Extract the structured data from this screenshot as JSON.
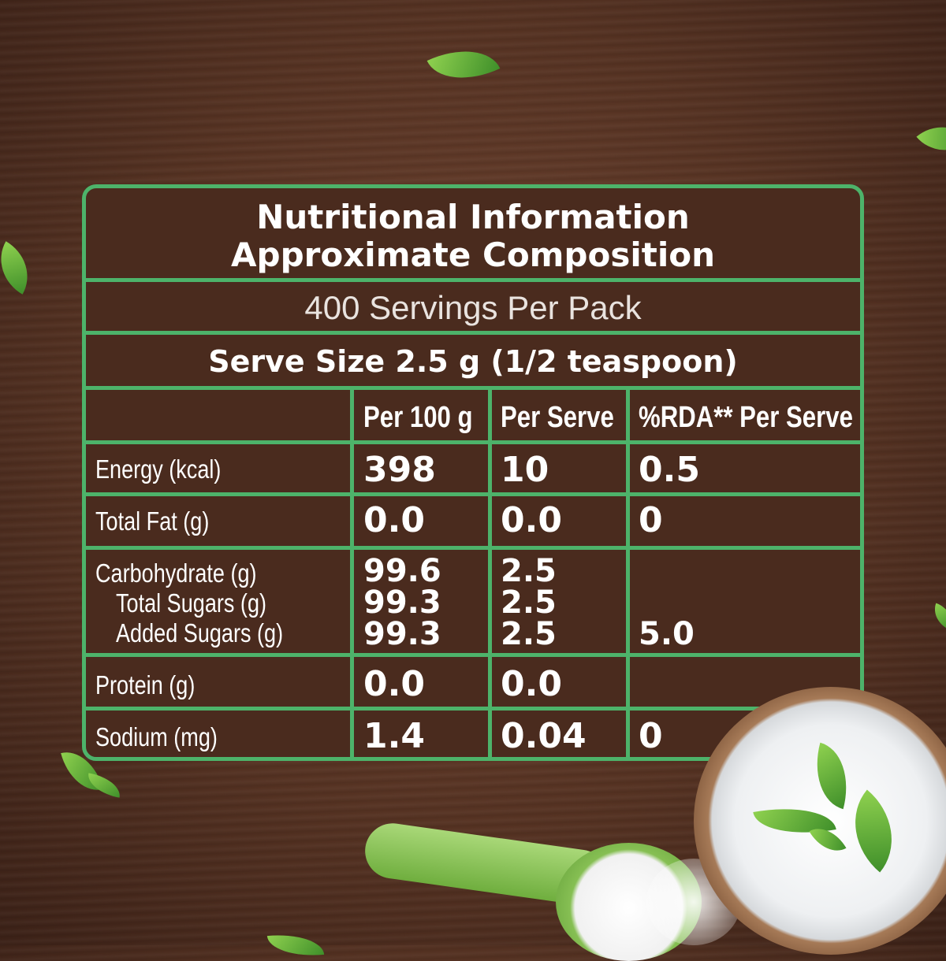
{
  "panel": {
    "title_line1": "Nutritional Information",
    "title_line2": "Approximate Composition",
    "servings": "400 Servings Per Pack",
    "serve_size": "Serve Size 2.5 g (1/2 teaspoon)",
    "columns": [
      "Per 100 g",
      "Per Serve",
      "%RDA** Per Serve"
    ],
    "rows": [
      {
        "label": "Energy (kcal)",
        "per100": "398",
        "perServe": "10",
        "rda": "0.5"
      },
      {
        "label": "Total Fat (g)",
        "per100": "0.0",
        "perServe": "0.0",
        "rda": "0"
      },
      {
        "label": "Carbohydrate (g)",
        "per100": "99.6",
        "perServe": "2.5",
        "rda": ""
      },
      {
        "label": "Total Sugars (g)",
        "per100": "99.3",
        "perServe": "2.5",
        "rda": ""
      },
      {
        "label": "Added Sugars (g)",
        "per100": "99.3",
        "perServe": "2.5",
        "rda": "5.0"
      },
      {
        "label": "Protein (g)",
        "per100": "0.0",
        "perServe": "0.0",
        "rda": ""
      },
      {
        "label": "Sodium (mg)",
        "per100": "1.4",
        "perServe": "0.04",
        "rda": "0"
      }
    ]
  },
  "colors": {
    "border": "#4db36a",
    "panel_bg": "#4a2b1e",
    "text": "#ffffff"
  }
}
